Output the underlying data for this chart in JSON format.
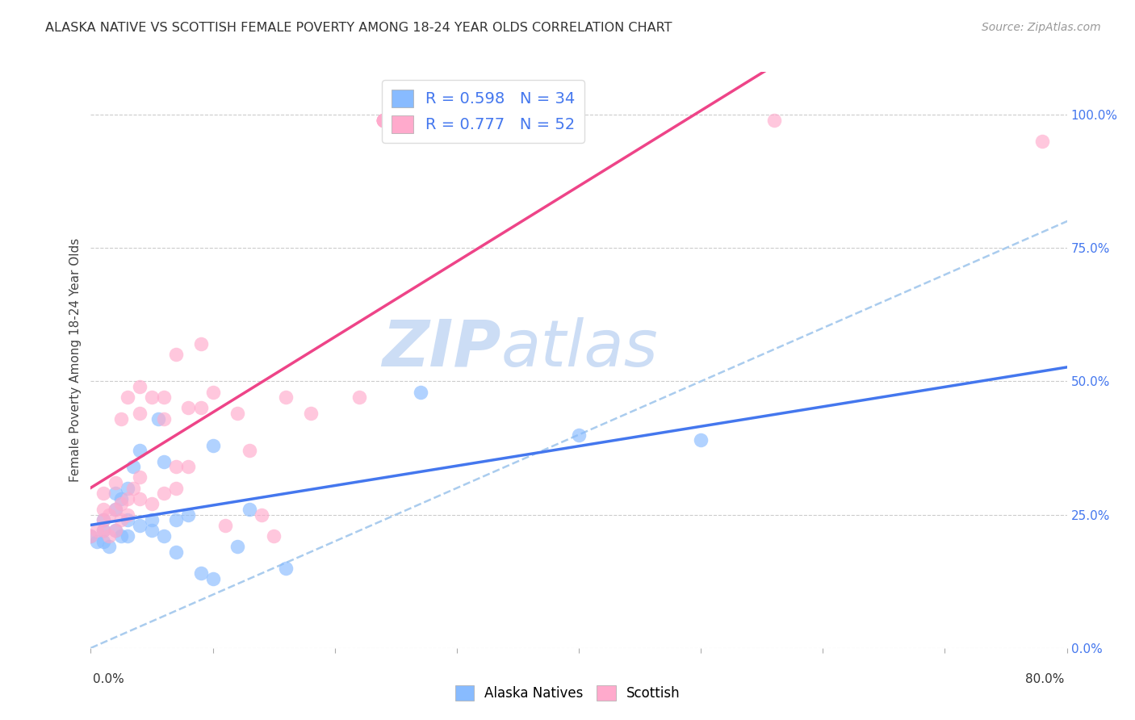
{
  "title": "ALASKA NATIVE VS SCOTTISH FEMALE POVERTY AMONG 18-24 YEAR OLDS CORRELATION CHART",
  "source_text": "Source: ZipAtlas.com",
  "ylabel": "Female Poverty Among 18-24 Year Olds",
  "xlim": [
    0.0,
    0.8
  ],
  "ylim": [
    0.0,
    1.08
  ],
  "yticks_right": [
    0.0,
    0.25,
    0.5,
    0.75,
    1.0
  ],
  "yticklabels_right": [
    "0.0%",
    "25.0%",
    "50.0%",
    "75.0%",
    "100.0%"
  ],
  "grid_color": "#cccccc",
  "background_color": "#ffffff",
  "alaska_color": "#88bbff",
  "scottish_color": "#ffaacc",
  "alaska_line_color": "#4477ee",
  "scottish_line_color": "#ee4488",
  "ref_line_color": "#aaccee",
  "alaska_R": 0.598,
  "alaska_N": 34,
  "scottish_R": 0.777,
  "scottish_N": 52,
  "watermark": "ZIPatlas",
  "watermark_color": "#ccddf5",
  "alaska_x": [
    0.0,
    0.005,
    0.01,
    0.01,
    0.01,
    0.015,
    0.02,
    0.02,
    0.02,
    0.025,
    0.025,
    0.03,
    0.03,
    0.03,
    0.035,
    0.04,
    0.04,
    0.05,
    0.05,
    0.055,
    0.06,
    0.06,
    0.07,
    0.07,
    0.08,
    0.09,
    0.1,
    0.1,
    0.12,
    0.13,
    0.16,
    0.27,
    0.4,
    0.5
  ],
  "alaska_y": [
    0.21,
    0.2,
    0.2,
    0.22,
    0.24,
    0.19,
    0.22,
    0.26,
    0.29,
    0.21,
    0.28,
    0.21,
    0.24,
    0.3,
    0.34,
    0.23,
    0.37,
    0.22,
    0.24,
    0.43,
    0.21,
    0.35,
    0.24,
    0.18,
    0.25,
    0.14,
    0.38,
    0.13,
    0.19,
    0.26,
    0.15,
    0.48,
    0.4,
    0.39
  ],
  "scottish_x": [
    0.0,
    0.005,
    0.01,
    0.01,
    0.01,
    0.01,
    0.015,
    0.015,
    0.02,
    0.02,
    0.02,
    0.025,
    0.025,
    0.025,
    0.03,
    0.03,
    0.03,
    0.035,
    0.04,
    0.04,
    0.04,
    0.04,
    0.05,
    0.05,
    0.06,
    0.06,
    0.06,
    0.07,
    0.07,
    0.07,
    0.08,
    0.08,
    0.09,
    0.09,
    0.1,
    0.11,
    0.12,
    0.13,
    0.14,
    0.15,
    0.16,
    0.18,
    0.22,
    0.24,
    0.24,
    0.24,
    0.24,
    0.24,
    0.24,
    0.24,
    0.56,
    0.78
  ],
  "scottish_y": [
    0.21,
    0.22,
    0.22,
    0.24,
    0.26,
    0.29,
    0.21,
    0.25,
    0.22,
    0.26,
    0.31,
    0.24,
    0.27,
    0.43,
    0.25,
    0.28,
    0.47,
    0.3,
    0.28,
    0.32,
    0.44,
    0.49,
    0.27,
    0.47,
    0.29,
    0.43,
    0.47,
    0.3,
    0.34,
    0.55,
    0.34,
    0.45,
    0.45,
    0.57,
    0.48,
    0.23,
    0.44,
    0.37,
    0.25,
    0.21,
    0.47,
    0.44,
    0.47,
    0.99,
    0.99,
    0.99,
    0.99,
    0.99,
    0.99,
    0.99,
    0.99,
    0.95
  ]
}
